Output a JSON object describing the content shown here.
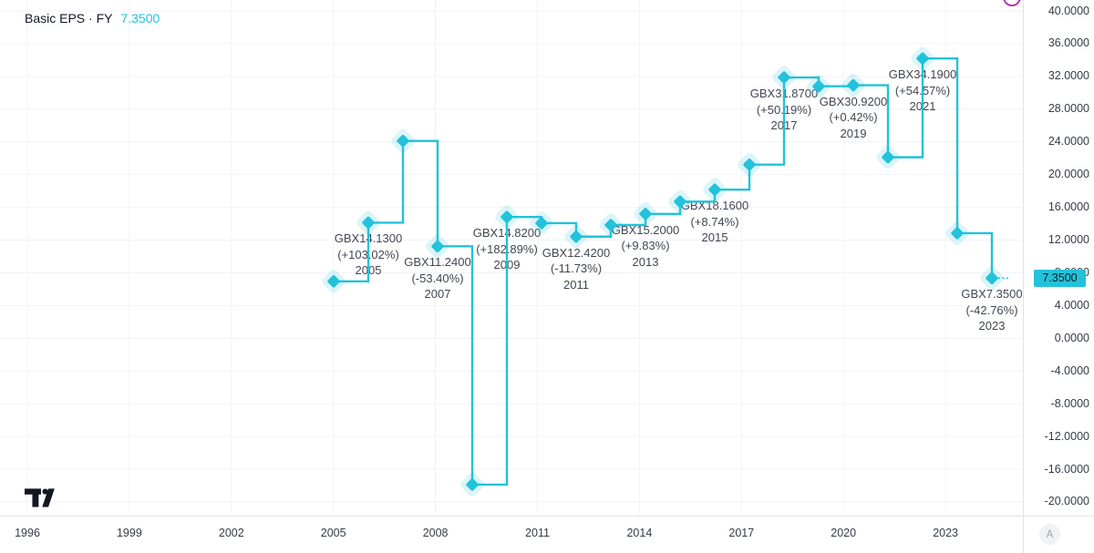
{
  "legend": {
    "title": "Basic EPS · FY",
    "value": "7.3500"
  },
  "price_axis": {
    "tick_labels": [
      "40.0000",
      "36.0000",
      "32.0000",
      "28.0000",
      "24.0000",
      "20.0000",
      "16.0000",
      "12.0000",
      "8.0000",
      "4.0000",
      "0.0000",
      "-4.0000",
      "-8.0000",
      "-12.0000",
      "-16.0000",
      "-20.0000"
    ],
    "price_tag": "7.3500"
  },
  "time_axis": {
    "tick_labels": [
      "1996",
      "1999",
      "2002",
      "2005",
      "2008",
      "2011",
      "2014",
      "2017",
      "2020",
      "2023"
    ]
  },
  "corner": {
    "auto_label": "A"
  },
  "icons": {
    "logo": "tradingview-logo-icon",
    "arc": "indicator-dot-icon"
  },
  "colors": {
    "accent_cyan": "#22c2da",
    "marker_halo": "rgba(34,194,218,0.16)",
    "grid": "#f0f3fa",
    "axis_border": "#e0e3eb",
    "axis_text": "#363a45",
    "label_text": "#434651",
    "legend_text": "#131722",
    "tag_text": "#0e1a20",
    "logo_fill": "#131722",
    "arc_stroke": "#b437ae"
  },
  "chart_data": {
    "type": "line",
    "line_style": "step",
    "marker": "diamond",
    "title": "Basic EPS · FY",
    "series_name": "Basic EPS",
    "value_unit": "GBX",
    "x": [
      2004,
      2005,
      2006,
      2007,
      2008,
      2009,
      2010,
      2011,
      2012,
      2013,
      2014,
      2015,
      2016,
      2017,
      2018,
      2019,
      2020,
      2021,
      2022,
      2023
    ],
    "values": [
      6.96,
      14.13,
      24.12,
      11.24,
      -17.88,
      14.82,
      14.07,
      12.42,
      13.84,
      15.2,
      16.7,
      18.16,
      21.22,
      31.87,
      30.79,
      30.92,
      22.12,
      34.19,
      12.84,
      7.35
    ],
    "point_labels": [
      null,
      {
        "value": "GBX14.1300",
        "pct": "(+103.02%)",
        "year": "2005"
      },
      null,
      {
        "value": "GBX11.2400",
        "pct": "(-53.40%)",
        "year": "2007"
      },
      null,
      {
        "value": "GBX14.8200",
        "pct": "(+182.89%)",
        "year": "2009"
      },
      null,
      {
        "value": "GBX12.4200",
        "pct": "(-11.73%)",
        "year": "2011"
      },
      null,
      {
        "value": "GBX15.2000",
        "pct": "(+9.83%)",
        "year": "2013"
      },
      null,
      {
        "value": "GBX18.1600",
        "pct": "(+8.74%)",
        "year": "2015"
      },
      null,
      {
        "value": "GBX31.8700",
        "pct": "(+50.19%)",
        "year": "2017"
      },
      null,
      {
        "value": "GBX30.9200",
        "pct": "(+0.42%)",
        "year": "2019"
      },
      null,
      {
        "value": "GBX34.1900",
        "pct": "(+54.57%)",
        "year": "2021"
      },
      null,
      {
        "value": "GBX7.3500",
        "pct": "(-42.76%)",
        "year": "2023"
      }
    ],
    "last_value": 7.35,
    "x_axis": {
      "tick_labels": [
        "1996",
        "1999",
        "2002",
        "2005",
        "2008",
        "2011",
        "2014",
        "2017",
        "2020",
        "2023"
      ]
    },
    "y_axis": {
      "tick_labels": [
        "40.0000",
        "36.0000",
        "32.0000",
        "28.0000",
        "24.0000",
        "20.0000",
        "16.0000",
        "12.0000",
        "8.0000",
        "4.0000",
        "0.0000",
        "-4.0000",
        "-8.0000",
        "-12.0000",
        "-16.0000",
        "-20.0000"
      ]
    },
    "ylim": [
      -21.7,
      41.3
    ],
    "grid": true,
    "legend_position": "top-left"
  }
}
